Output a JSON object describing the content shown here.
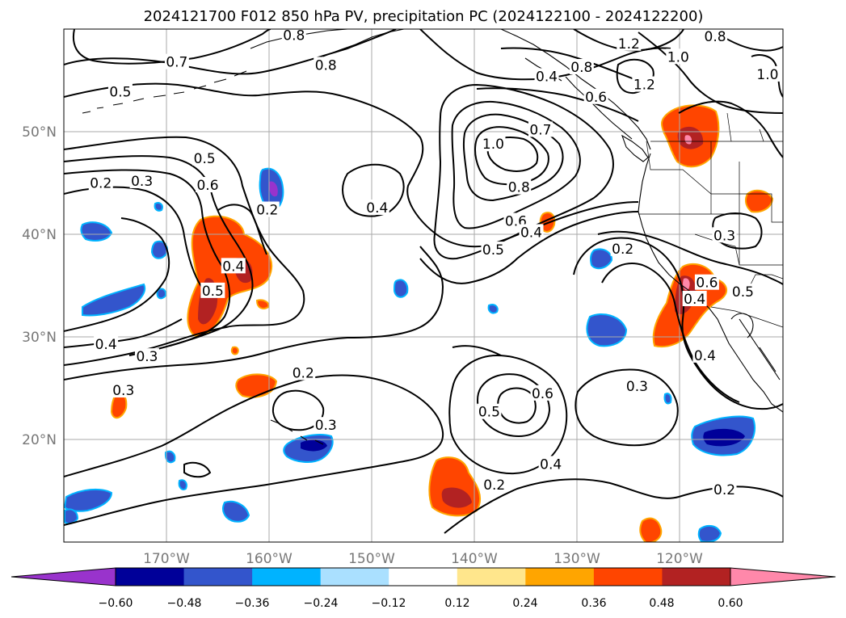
{
  "title": "2024121700 F012 850 hPa PV, precipitation PC (2024122100 - 2024122200)",
  "map": {
    "lon_range": [
      180,
      110
    ],
    "lat_range": [
      10,
      60
    ],
    "lon_ticks": [
      {
        "lon": 170,
        "label": "170°W"
      },
      {
        "lon": 160,
        "label": "160°W"
      },
      {
        "lon": 150,
        "label": "150°W"
      },
      {
        "lon": 140,
        "label": "140°W"
      },
      {
        "lon": 130,
        "label": "130°W"
      },
      {
        "lon": 120,
        "label": "120°W"
      }
    ],
    "lat_ticks": [
      {
        "lat": 50,
        "label": "50°N"
      },
      {
        "lat": 40,
        "label": "40°N"
      },
      {
        "lat": 30,
        "label": "30°N"
      },
      {
        "lat": 20,
        "label": "20°N"
      }
    ],
    "grid": true
  },
  "contour_labels": [
    {
      "text": "0.7",
      "lon": 169,
      "lat": 56.8
    },
    {
      "text": "0.8",
      "lon": 157.6,
      "lat": 59.4
    },
    {
      "text": "0.8",
      "lon": 154.5,
      "lat": 56.5
    },
    {
      "text": "0.5",
      "lon": 174.5,
      "lat": 53.9
    },
    {
      "text": "0.5",
      "lon": 166.3,
      "lat": 47.4
    },
    {
      "text": "0.6",
      "lon": 166,
      "lat": 44.8
    },
    {
      "text": "0.2",
      "lon": 176.4,
      "lat": 45
    },
    {
      "text": "0.3",
      "lon": 172.4,
      "lat": 45.2
    },
    {
      "text": "0.2",
      "lon": 160.2,
      "lat": 42.4
    },
    {
      "text": "0.4",
      "lon": 163.5,
      "lat": 36.9
    },
    {
      "text": "0.5",
      "lon": 165.5,
      "lat": 34.5
    },
    {
      "text": "0.4",
      "lon": 175.9,
      "lat": 29.3
    },
    {
      "text": "0.3",
      "lon": 171.9,
      "lat": 28.1
    },
    {
      "text": "0.3",
      "lon": 174.2,
      "lat": 24.8
    },
    {
      "text": "0.2",
      "lon": 156.7,
      "lat": 26.5
    },
    {
      "text": "0.3",
      "lon": 154.5,
      "lat": 21.4
    },
    {
      "text": "0.4",
      "lon": 149.5,
      "lat": 42.6
    },
    {
      "text": "1.0",
      "lon": 138.2,
      "lat": 48.8
    },
    {
      "text": "0.8",
      "lon": 135.7,
      "lat": 44.6
    },
    {
      "text": "0.7",
      "lon": 133.6,
      "lat": 50.2
    },
    {
      "text": "0.6",
      "lon": 136,
      "lat": 41.3
    },
    {
      "text": "0.5",
      "lon": 138.2,
      "lat": 38.5
    },
    {
      "text": "0.4",
      "lon": 134.5,
      "lat": 40.2
    },
    {
      "text": "0.4",
      "lon": 133,
      "lat": 55.4
    },
    {
      "text": "0.8",
      "lon": 129.6,
      "lat": 56.3
    },
    {
      "text": "0.6",
      "lon": 128.2,
      "lat": 53.4
    },
    {
      "text": "1.2",
      "lon": 125,
      "lat": 58.6
    },
    {
      "text": "1.2",
      "lon": 123.5,
      "lat": 54.6
    },
    {
      "text": "1.0",
      "lon": 120.2,
      "lat": 57.3
    },
    {
      "text": "0.8",
      "lon": 116.6,
      "lat": 59.3
    },
    {
      "text": "1.0",
      "lon": 111.5,
      "lat": 55.6
    },
    {
      "text": "0.2",
      "lon": 125.6,
      "lat": 38.6
    },
    {
      "text": "0.3",
      "lon": 115.7,
      "lat": 39.9
    },
    {
      "text": "0.6",
      "lon": 117.4,
      "lat": 35.3
    },
    {
      "text": "0.5",
      "lon": 113.9,
      "lat": 34.4
    },
    {
      "text": "0.4",
      "lon": 118.6,
      "lat": 33.7
    },
    {
      "text": "0.4",
      "lon": 117.6,
      "lat": 28.2
    },
    {
      "text": "0.3",
      "lon": 124.2,
      "lat": 25.2
    },
    {
      "text": "0.6",
      "lon": 133.4,
      "lat": 24.5
    },
    {
      "text": "0.5",
      "lon": 138.6,
      "lat": 22.7
    },
    {
      "text": "0.4",
      "lon": 132.6,
      "lat": 17.6
    },
    {
      "text": "0.2",
      "lon": 138.1,
      "lat": 15.6
    },
    {
      "text": "0.2",
      "lon": 115.7,
      "lat": 15.1
    }
  ],
  "colorbar": {
    "colors": [
      "#9933cc",
      "#000099",
      "#3355cc",
      "#00b3ff",
      "#aae0ff",
      "#ffffff",
      "#ffe68c",
      "#ffa500",
      "#ff4500",
      "#b22222",
      "#ff88aa"
    ],
    "tick_labels": [
      "−0.60",
      "−0.48",
      "−0.36",
      "−0.24",
      "−0.12",
      "0.12",
      "0.24",
      "0.36",
      "0.48",
      "0.60"
    ]
  }
}
